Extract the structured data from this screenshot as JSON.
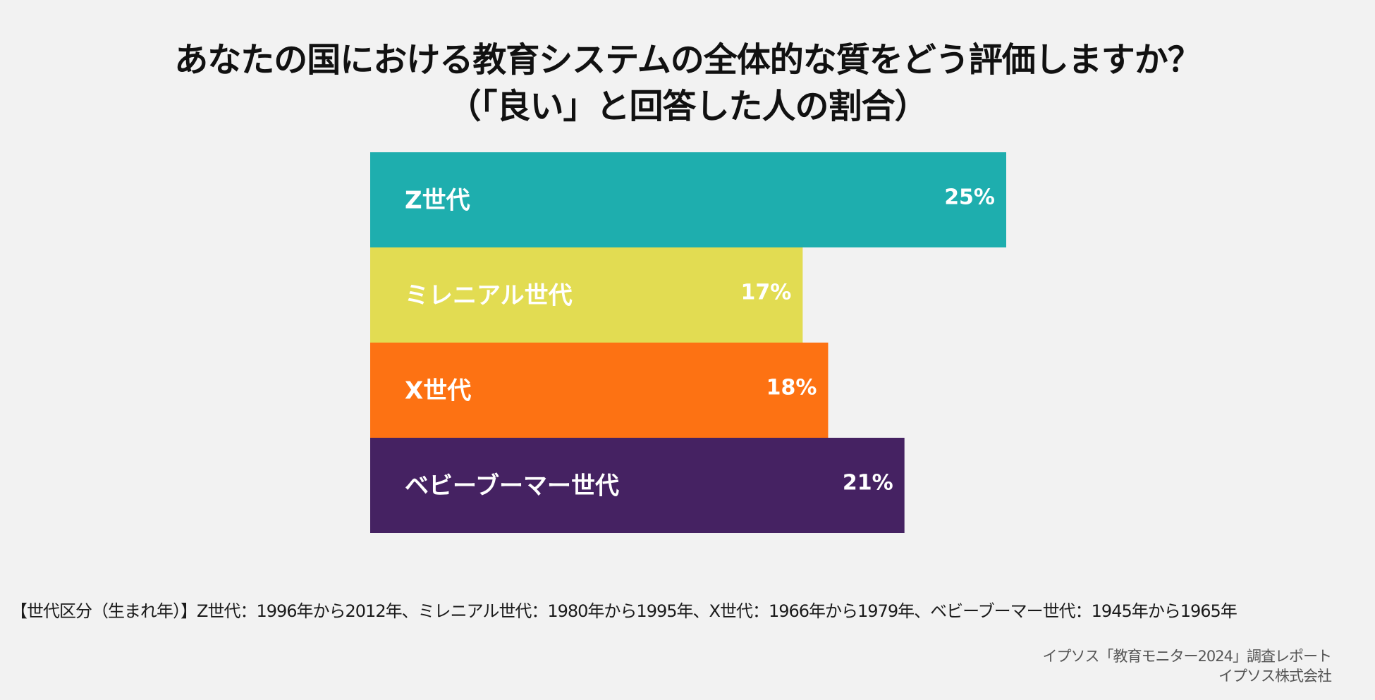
{
  "chart_data": {
    "type": "bar",
    "orientation": "horizontal",
    "title_line1": "あなたの国における教育システムの全体的な質をどう評価しますか？",
    "title_line2": "（「良い」と回答した人の割合）",
    "categories": [
      "Z世代",
      "ミレニアル世代",
      "X世代",
      "ベビーブーマー世代"
    ],
    "values": [
      25,
      17,
      18,
      21
    ],
    "value_labels": [
      "25%",
      "17%",
      "18%",
      "21%"
    ],
    "unit": "%",
    "colors": [
      "#1eaeae",
      "#e2dc52",
      "#fd7213",
      "#452262"
    ],
    "xlim": [
      0,
      25
    ],
    "grid": false,
    "legend": "none"
  },
  "footnote": "【世代区分（生まれ年）】Z世代：1996年から2012年、ミレニアル世代：1980年から1995年、X世代：1966年から1979年、ベビーブーマー世代：1945年から1965年",
  "source_line1": "イプソス「教育モニター2024」調査レポート",
  "source_line2": "イプソス株式会社"
}
